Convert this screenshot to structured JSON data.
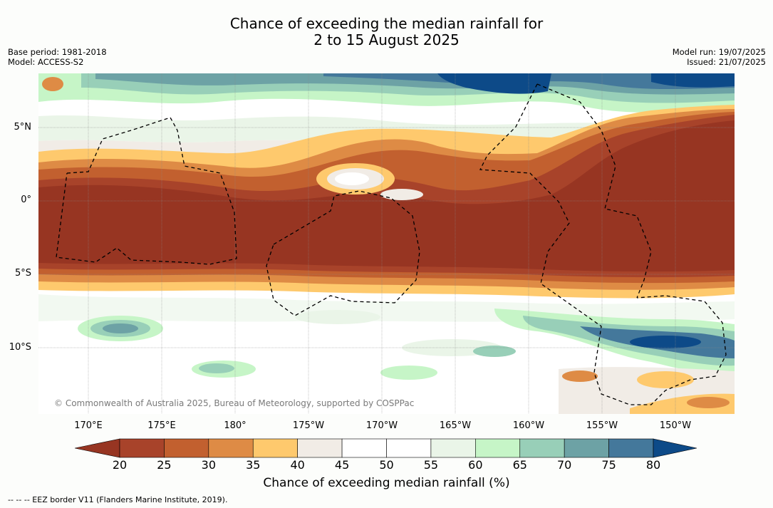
{
  "title": {
    "line1": "Chance of exceeding the median rainfall for",
    "line2": "2 to 15 August 2025"
  },
  "meta": {
    "base_period": "Base period: 1981-2018",
    "model": "Model: ACCESS-S2",
    "model_run": "Model run: 19/07/2025",
    "issued": "Issued: 21/07/2025"
  },
  "map": {
    "lat_labels": [
      "5°N",
      "0°",
      "5°S",
      "10°S"
    ],
    "lon_labels": [
      "170°E",
      "175°E",
      "180°",
      "175°W",
      "170°W",
      "165°W",
      "160°W",
      "155°W",
      "150°W"
    ],
    "copyright": "© Commonwealth of Australia 2025, Bureau of Meteorology, supported by COSPPac"
  },
  "colorbar": {
    "title": "Chance of exceeding median rainfall (%)",
    "ticks": [
      "20",
      "25",
      "30",
      "35",
      "40",
      "45",
      "50",
      "55",
      "60",
      "65",
      "70",
      "75",
      "80"
    ],
    "colors": [
      "#a8432a",
      "#c2602f",
      "#de8b45",
      "#fec96d",
      "#f1ece6",
      "#ffffff",
      "#ffffff",
      "#eaf5e8",
      "#c6f5c7",
      "#98cfb8",
      "#6da2a5",
      "#44789b"
    ],
    "under_color": "#973522",
    "over_color": "#0d4a88"
  },
  "footnote": "--  --  -- EEZ border V11 (Flanders Marine Institute, 2019)."
}
